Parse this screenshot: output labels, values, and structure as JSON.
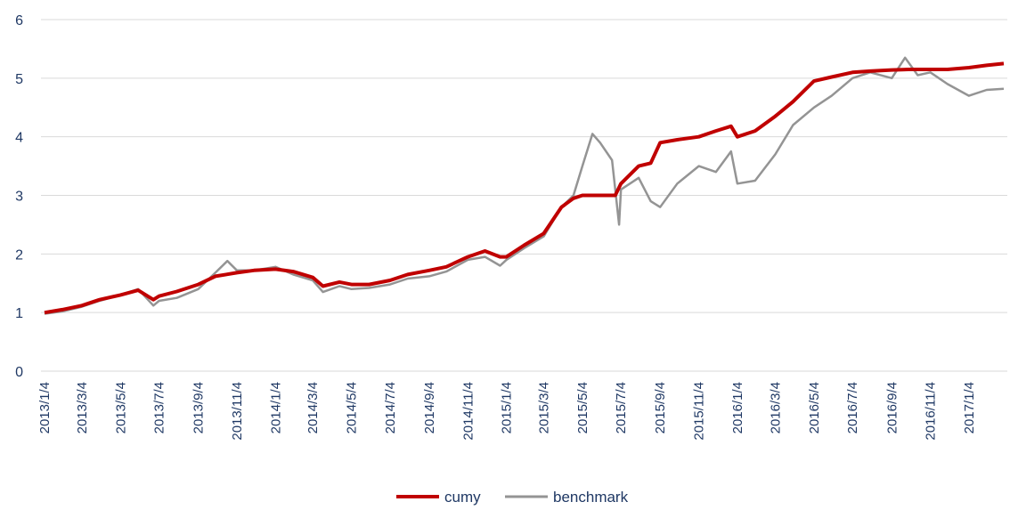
{
  "chart_data": {
    "type": "line",
    "title": "",
    "xlabel": "",
    "ylabel": "",
    "ylim": [
      0,
      6
    ],
    "yticks": [
      0,
      1,
      2,
      3,
      4,
      5,
      6
    ],
    "grid": "horizontal",
    "legend": "bottom-center",
    "x_tick_labels": [
      "2013/1/4",
      "2013/3/4",
      "2013/5/4",
      "2013/7/4",
      "2013/9/4",
      "2013/11/4",
      "2014/1/4",
      "2014/3/4",
      "2014/5/4",
      "2014/7/4",
      "2014/9/4",
      "2014/11/4",
      "2015/1/4",
      "2015/3/4",
      "2015/5/4",
      "2015/7/4",
      "2015/9/4",
      "2015/11/4",
      "2016/1/4",
      "2016/3/4",
      "2016/5/4",
      "2016/7/4",
      "2016/9/4",
      "2016/11/4",
      "2017/1/4"
    ],
    "x_last": "2017/2/28",
    "series": [
      {
        "name": "cumy",
        "color": "#c00000",
        "points": [
          [
            "2013/1/4",
            1.0
          ],
          [
            "2013/2/1",
            1.05
          ],
          [
            "2013/3/4",
            1.12
          ],
          [
            "2013/4/1",
            1.22
          ],
          [
            "2013/5/4",
            1.3
          ],
          [
            "2013/6/1",
            1.38
          ],
          [
            "2013/6/25",
            1.22
          ],
          [
            "2013/7/4",
            1.28
          ],
          [
            "2013/8/1",
            1.36
          ],
          [
            "2013/9/4",
            1.48
          ],
          [
            "2013/10/1",
            1.62
          ],
          [
            "2013/11/4",
            1.68
          ],
          [
            "2013/12/1",
            1.72
          ],
          [
            "2014/1/4",
            1.74
          ],
          [
            "2014/2/1",
            1.7
          ],
          [
            "2014/3/4",
            1.6
          ],
          [
            "2014/3/20",
            1.45
          ],
          [
            "2014/4/15",
            1.52
          ],
          [
            "2014/5/4",
            1.48
          ],
          [
            "2014/6/1",
            1.48
          ],
          [
            "2014/7/4",
            1.55
          ],
          [
            "2014/8/1",
            1.65
          ],
          [
            "2014/9/4",
            1.72
          ],
          [
            "2014/10/1",
            1.78
          ],
          [
            "2014/11/4",
            1.95
          ],
          [
            "2014/12/1",
            2.05
          ],
          [
            "2014/12/25",
            1.95
          ],
          [
            "2015/1/4",
            1.95
          ],
          [
            "2015/2/1",
            2.15
          ],
          [
            "2015/3/4",
            2.35
          ],
          [
            "2015/4/1",
            2.8
          ],
          [
            "2015/4/20",
            2.95
          ],
          [
            "2015/5/4",
            3.0
          ],
          [
            "2015/6/1",
            3.0
          ],
          [
            "2015/6/25",
            3.0
          ],
          [
            "2015/7/4",
            3.2
          ],
          [
            "2015/8/1",
            3.5
          ],
          [
            "2015/8/20",
            3.55
          ],
          [
            "2015/9/4",
            3.9
          ],
          [
            "2015/10/1",
            3.95
          ],
          [
            "2015/11/4",
            4.0
          ],
          [
            "2015/12/1",
            4.1
          ],
          [
            "2015/12/25",
            4.18
          ],
          [
            "2016/1/4",
            4.0
          ],
          [
            "2016/2/1",
            4.1
          ],
          [
            "2016/3/4",
            4.35
          ],
          [
            "2016/4/1",
            4.6
          ],
          [
            "2016/5/4",
            4.95
          ],
          [
            "2016/6/1",
            5.02
          ],
          [
            "2016/7/4",
            5.1
          ],
          [
            "2016/8/1",
            5.12
          ],
          [
            "2016/9/4",
            5.14
          ],
          [
            "2016/10/1",
            5.15
          ],
          [
            "2016/11/4",
            5.15
          ],
          [
            "2016/12/1",
            5.15
          ],
          [
            "2017/1/4",
            5.18
          ],
          [
            "2017/2/1",
            5.22
          ],
          [
            "2017/2/28",
            5.25
          ]
        ]
      },
      {
        "name": "benchmark",
        "color": "#949494",
        "points": [
          [
            "2013/1/4",
            0.98
          ],
          [
            "2013/2/1",
            1.02
          ],
          [
            "2013/3/4",
            1.1
          ],
          [
            "2013/4/1",
            1.2
          ],
          [
            "2013/5/4",
            1.3
          ],
          [
            "2013/6/1",
            1.4
          ],
          [
            "2013/6/25",
            1.12
          ],
          [
            "2013/7/4",
            1.2
          ],
          [
            "2013/8/1",
            1.25
          ],
          [
            "2013/9/4",
            1.4
          ],
          [
            "2013/10/1",
            1.68
          ],
          [
            "2013/10/20",
            1.88
          ],
          [
            "2013/11/4",
            1.72
          ],
          [
            "2013/12/1",
            1.72
          ],
          [
            "2014/1/4",
            1.78
          ],
          [
            "2014/2/1",
            1.65
          ],
          [
            "2014/3/4",
            1.55
          ],
          [
            "2014/3/20",
            1.35
          ],
          [
            "2014/4/15",
            1.45
          ],
          [
            "2014/5/4",
            1.4
          ],
          [
            "2014/6/1",
            1.42
          ],
          [
            "2014/7/4",
            1.48
          ],
          [
            "2014/8/1",
            1.58
          ],
          [
            "2014/9/4",
            1.62
          ],
          [
            "2014/10/1",
            1.7
          ],
          [
            "2014/11/4",
            1.9
          ],
          [
            "2014/12/1",
            1.95
          ],
          [
            "2014/12/25",
            1.8
          ],
          [
            "2015/1/4",
            1.9
          ],
          [
            "2015/2/1",
            2.1
          ],
          [
            "2015/3/4",
            2.3
          ],
          [
            "2015/4/1",
            2.8
          ],
          [
            "2015/4/20",
            3.0
          ],
          [
            "2015/5/4",
            3.5
          ],
          [
            "2015/5/20",
            4.05
          ],
          [
            "2015/6/1",
            3.9
          ],
          [
            "2015/6/20",
            3.6
          ],
          [
            "2015/7/1",
            2.5
          ],
          [
            "2015/7/4",
            3.1
          ],
          [
            "2015/8/1",
            3.3
          ],
          [
            "2015/8/20",
            2.9
          ],
          [
            "2015/9/4",
            2.8
          ],
          [
            "2015/10/1",
            3.2
          ],
          [
            "2015/11/4",
            3.5
          ],
          [
            "2015/12/1",
            3.4
          ],
          [
            "2015/12/25",
            3.75
          ],
          [
            "2016/1/4",
            3.2
          ],
          [
            "2016/2/1",
            3.25
          ],
          [
            "2016/3/4",
            3.7
          ],
          [
            "2016/4/1",
            4.2
          ],
          [
            "2016/5/4",
            4.5
          ],
          [
            "2016/6/1",
            4.7
          ],
          [
            "2016/7/4",
            5.0
          ],
          [
            "2016/8/1",
            5.1
          ],
          [
            "2016/9/4",
            5.0
          ],
          [
            "2016/9/25",
            5.35
          ],
          [
            "2016/10/15",
            5.05
          ],
          [
            "2016/11/4",
            5.1
          ],
          [
            "2016/12/1",
            4.9
          ],
          [
            "2017/1/4",
            4.7
          ],
          [
            "2017/2/1",
            4.8
          ],
          [
            "2017/2/28",
            4.82
          ]
        ]
      }
    ]
  }
}
